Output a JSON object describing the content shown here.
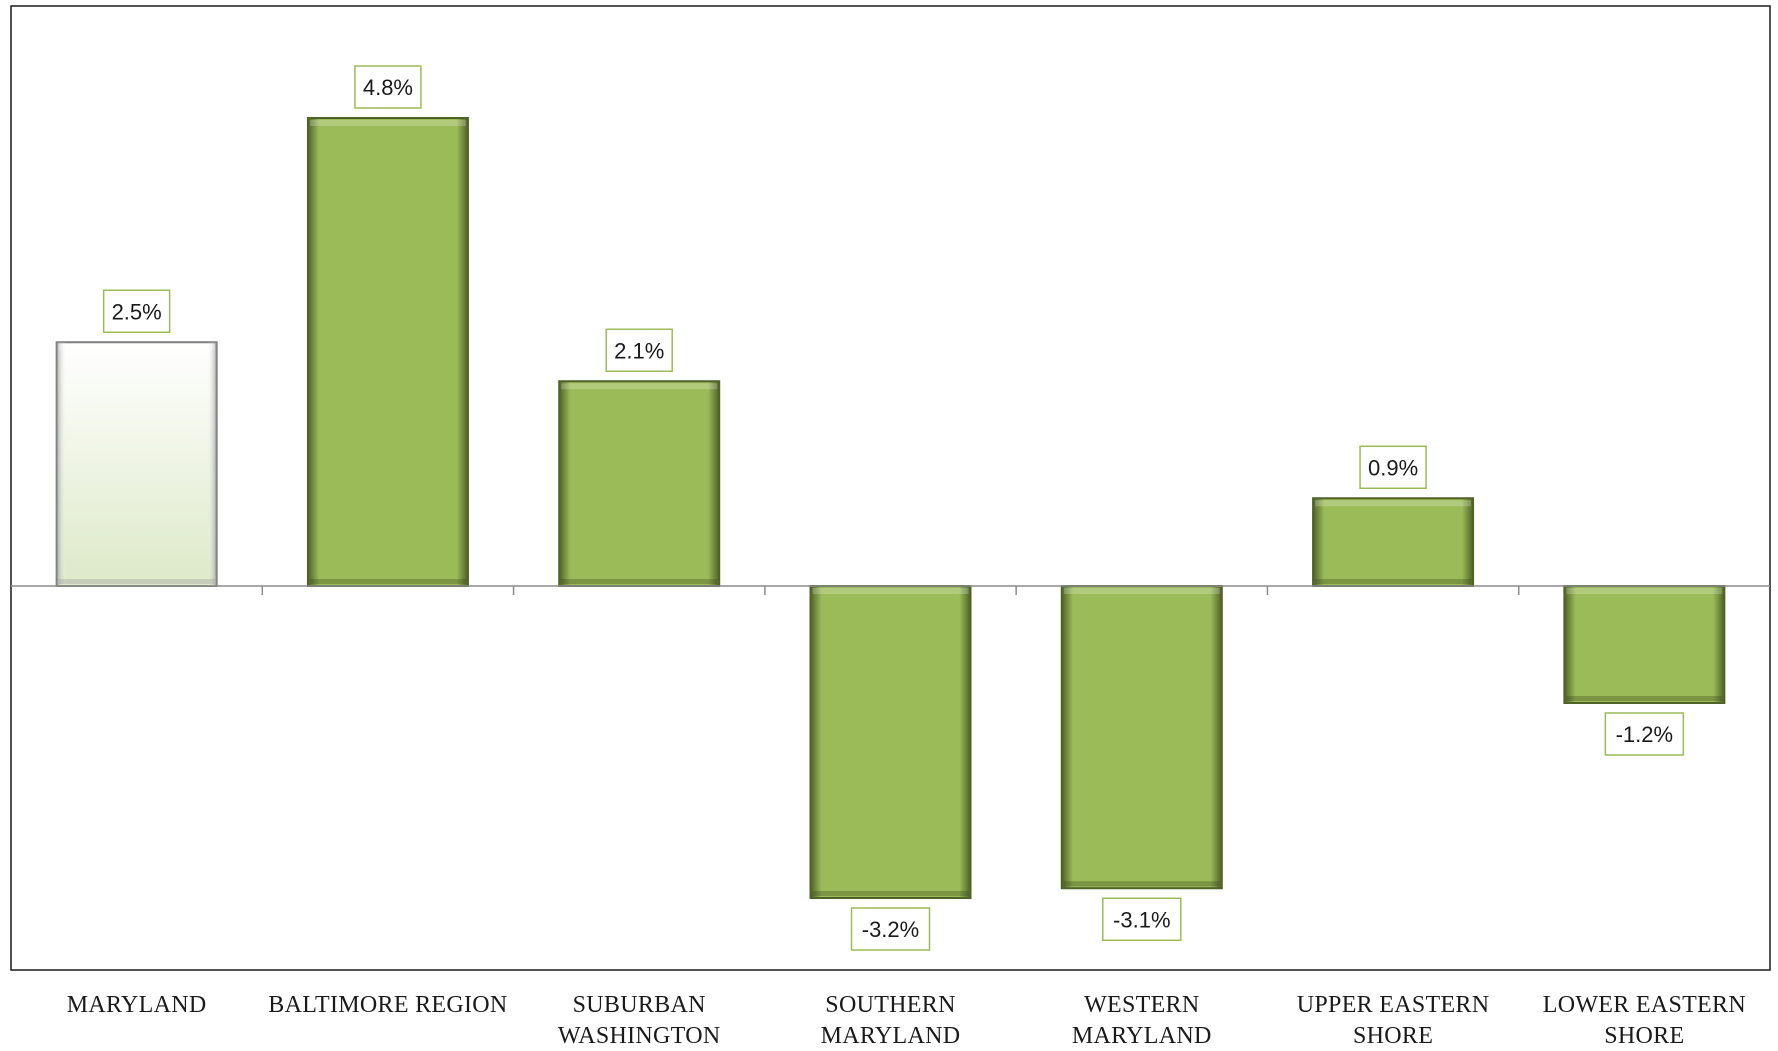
{
  "chart_data": {
    "type": "bar",
    "title": "",
    "xlabel": "",
    "ylabel": "",
    "categories": [
      [
        "MARYLAND"
      ],
      [
        "BALTIMORE REGION"
      ],
      [
        "SUBURBAN",
        "WASHINGTON"
      ],
      [
        "SOUTHERN",
        "MARYLAND"
      ],
      [
        "WESTERN",
        "MARYLAND"
      ],
      [
        "UPPER EASTERN",
        "SHORE"
      ],
      [
        "LOWER EASTERN",
        "SHORE"
      ]
    ],
    "values": [
      2.5,
      4.8,
      2.1,
      -3.2,
      -3.1,
      0.9,
      -1.2
    ],
    "data_labels": [
      "2.5%",
      "4.8%",
      "2.1%",
      "-3.2%",
      "-3.1%",
      "0.9%",
      "-1.2%"
    ],
    "highlight_index": 0,
    "ylim": [
      -4.0,
      6.0
    ],
    "grid": false,
    "legend": "none",
    "colors": {
      "bar": "#9bbb59",
      "bar_dark": "#4f6228",
      "highlight_bar": "#eef4e2",
      "highlight_border": "#7f7f7f",
      "label_border": "#9bbb59",
      "axis": "#8c8c8c",
      "frame": "#1a1a1a"
    }
  }
}
